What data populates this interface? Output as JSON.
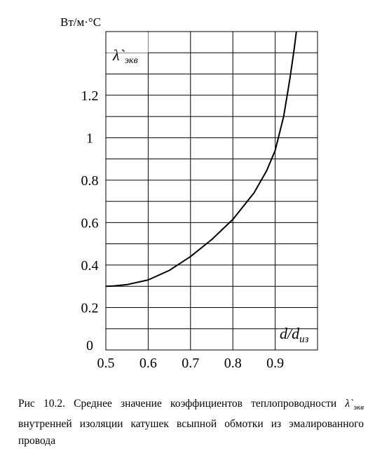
{
  "chart_data": {
    "type": "line",
    "x_range": [
      0.5,
      1.0
    ],
    "y_range": [
      0,
      1.5
    ],
    "xticks": [
      0.5,
      0.6,
      0.7,
      0.8,
      0.9
    ],
    "xtick_labels": [
      "0.5",
      "0.6",
      "0.7",
      "0.8",
      "0.9"
    ],
    "yticks": [
      0,
      0.2,
      0.4,
      0.6,
      0.8,
      1,
      1.2
    ],
    "ytick_labels": [
      "0",
      "0.2",
      "0.4",
      "0.6",
      "0.8",
      "1",
      "1.2"
    ],
    "grid": true,
    "grid_x_step": 0.1,
    "grid_y_step": 0.1,
    "y_unit": "Вт/м·°С",
    "ylabel": "λ`экв",
    "xlabel": "d/dиз",
    "series": [
      {
        "x": [
          0.5,
          0.52,
          0.55,
          0.6,
          0.65,
          0.7,
          0.75,
          0.8,
          0.85,
          0.88,
          0.9,
          0.92,
          0.935,
          0.945,
          0.95
        ],
        "y": [
          0.3,
          0.302,
          0.308,
          0.33,
          0.375,
          0.44,
          0.52,
          0.615,
          0.74,
          0.845,
          0.94,
          1.1,
          1.28,
          1.42,
          1.5
        ]
      }
    ]
  },
  "caption": {
    "prefix": "Рис 10.2. Среднее значение коэффициентов теплопроводности",
    "symbol_main": "λ`",
    "symbol_sub": "экв",
    "suffix": "внутренней изоляции катушек всыпной обмотки из эмалированного провода"
  }
}
